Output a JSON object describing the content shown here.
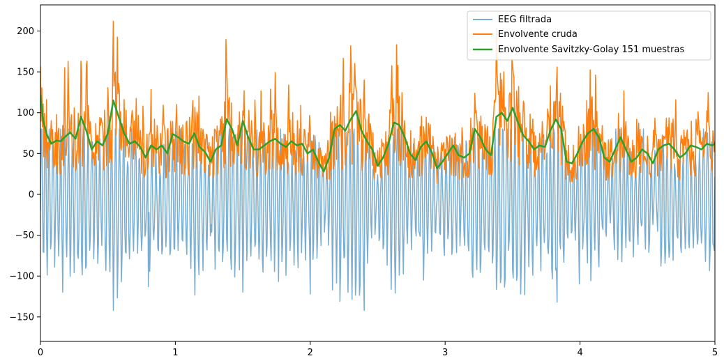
{
  "chart_data": {
    "type": "line",
    "title": "",
    "xlabel": "",
    "ylabel": "",
    "xlim": [
      0,
      5
    ],
    "ylim": [
      -180,
      232
    ],
    "grid": false,
    "legend_position": "top-right",
    "x_ticks": [
      0,
      1,
      2,
      3,
      4,
      5
    ],
    "y_ticks": [
      -150,
      -100,
      -50,
      0,
      50,
      100,
      150,
      200
    ],
    "series": [
      {
        "name": "EEG filtrada",
        "color": "#1f77b4",
        "opacity": 0.6,
        "description_points": {
          "x": [
            0.0,
            0.1,
            0.15,
            0.3,
            0.4,
            0.55,
            0.6,
            0.65,
            0.8,
            1.0,
            1.2,
            1.45,
            1.6,
            1.8,
            2.0,
            2.1,
            2.2,
            2.35,
            2.4,
            2.5,
            2.7,
            2.9,
            3.1,
            3.3,
            3.5,
            3.6,
            3.7,
            3.9,
            4.1,
            4.3,
            4.5,
            4.7,
            4.9,
            5.0
          ],
          "y": [
            20,
            -42,
            30,
            -60,
            15,
            45,
            -105,
            30,
            -113,
            10,
            -95,
            -30,
            -110,
            -40,
            -122,
            -30,
            55,
            -140,
            -20,
            -90,
            -60,
            40,
            -105,
            -50,
            40,
            -110,
            -30,
            -132,
            -100,
            -60,
            -70,
            -40,
            -60,
            -80
          ]
        },
        "values": []
      },
      {
        "name": "Envolvente cruda",
        "color": "#ff7f0e",
        "values": []
      },
      {
        "name": "Envolvente Savitzky-Golay 151 muestras",
        "color": "#2ca02c",
        "x": [
          0.0,
          0.02,
          0.05,
          0.08,
          0.12,
          0.15,
          0.18,
          0.22,
          0.26,
          0.3,
          0.34,
          0.38,
          0.42,
          0.46,
          0.5,
          0.54,
          0.58,
          0.62,
          0.66,
          0.7,
          0.74,
          0.78,
          0.82,
          0.86,
          0.9,
          0.94,
          0.98,
          1.02,
          1.06,
          1.1,
          1.14,
          1.18,
          1.22,
          1.26,
          1.3,
          1.34,
          1.38,
          1.42,
          1.46,
          1.5,
          1.54,
          1.58,
          1.62,
          1.66,
          1.7,
          1.74,
          1.78,
          1.82,
          1.86,
          1.9,
          1.94,
          1.98,
          2.02,
          2.06,
          2.1,
          2.14,
          2.18,
          2.22,
          2.26,
          2.3,
          2.34,
          2.38,
          2.42,
          2.46,
          2.5,
          2.54,
          2.58,
          2.62,
          2.66,
          2.7,
          2.74,
          2.78,
          2.82,
          2.86,
          2.9,
          2.94,
          2.98,
          3.02,
          3.06,
          3.1,
          3.14,
          3.18,
          3.22,
          3.26,
          3.3,
          3.34,
          3.38,
          3.42,
          3.46,
          3.5,
          3.54,
          3.58,
          3.62,
          3.66,
          3.7,
          3.74,
          3.78,
          3.82,
          3.86,
          3.9,
          3.94,
          3.98,
          4.02,
          4.06,
          4.1,
          4.14,
          4.18,
          4.22,
          4.26,
          4.3,
          4.34,
          4.38,
          4.42,
          4.46,
          4.5,
          4.54,
          4.58,
          4.62,
          4.66,
          4.7,
          4.74,
          4.78,
          4.82,
          4.86,
          4.9,
          4.94,
          4.98,
          5.0
        ],
        "values": [
          122,
          90,
          72,
          62,
          66,
          65,
          70,
          76,
          68,
          95,
          78,
          55,
          65,
          60,
          75,
          115,
          95,
          75,
          62,
          65,
          58,
          45,
          60,
          55,
          60,
          50,
          74,
          70,
          65,
          62,
          75,
          58,
          52,
          40,
          55,
          60,
          92,
          80,
          60,
          90,
          70,
          55,
          55,
          60,
          65,
          68,
          62,
          58,
          65,
          60,
          62,
          50,
          55,
          40,
          28,
          45,
          80,
          85,
          78,
          92,
          102,
          78,
          65,
          55,
          35,
          45,
          62,
          88,
          85,
          70,
          50,
          42,
          58,
          65,
          52,
          32,
          40,
          50,
          60,
          48,
          45,
          50,
          80,
          70,
          55,
          48,
          95,
          100,
          90,
          106,
          88,
          72,
          65,
          55,
          60,
          58,
          78,
          92,
          80,
          40,
          38,
          50,
          65,
          75,
          80,
          70,
          45,
          40,
          55,
          70,
          55,
          40,
          45,
          55,
          50,
          38,
          55,
          60,
          62,
          55,
          45,
          50,
          60,
          58,
          55,
          62,
          60,
          62
        ]
      }
    ]
  }
}
